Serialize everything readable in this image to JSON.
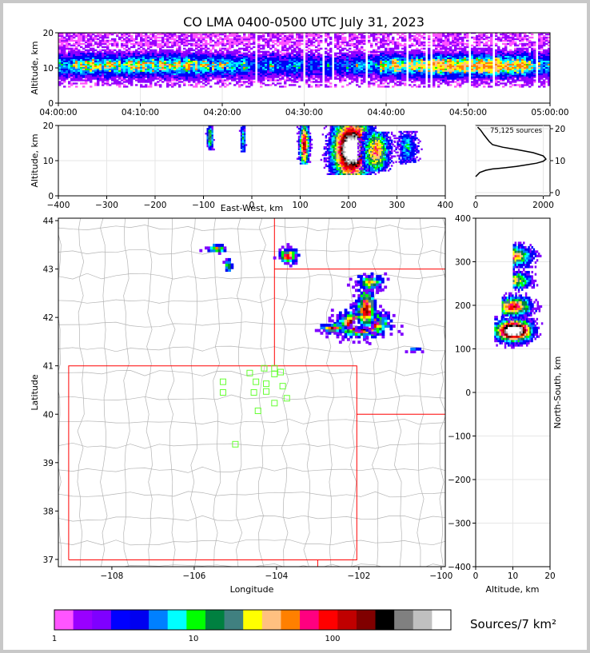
{
  "figure": {
    "title": "CO LMA 0400-0500 UTC July 31, 2023",
    "source_count_label": "75,125 sources",
    "colorbar_label": "Sources/7 km²",
    "colorbar_ticks": [
      "1",
      "10",
      "100"
    ],
    "colorbar_colors": [
      "#ff55ff",
      "#9900ff",
      "#7f00ff",
      "#0000ff",
      "#0000f0",
      "#0080ff",
      "#00ffff",
      "#00ff00",
      "#008040",
      "#408080",
      "#ffff00",
      "#ffc080",
      "#ff8000",
      "#ff0080",
      "#ff0000",
      "#c00000",
      "#800000",
      "#000000",
      "#808080",
      "#c0c0c0",
      "#ffffff"
    ]
  },
  "chart_data": [
    {
      "id": "time_height",
      "type": "heatmap",
      "xlabel": "",
      "ylabel": "Altitude, km",
      "xticks": [
        "04:00:00",
        "04:10:00",
        "04:20:00",
        "04:30:00",
        "04:40:00",
        "04:50:00",
        "05:00:00"
      ],
      "xlim": [
        "04:00:00",
        "05:00:00"
      ],
      "yticks": [
        "0",
        "10",
        "20"
      ],
      "ylim": [
        0,
        20
      ],
      "description_of_data": "source density vs time, altitude band ~5-20 km throughout hour"
    },
    {
      "id": "ew_height",
      "type": "heatmap",
      "xlabel": "East-West, km",
      "ylabel": "Altitude, km",
      "xticks": [
        "−400",
        "−300",
        "−200",
        "−100",
        "0",
        "100",
        "200",
        "300",
        "400"
      ],
      "xlim": [
        -400,
        400
      ],
      "yticks": [
        "0",
        "10",
        "20"
      ],
      "ylim": [
        0,
        20
      ]
    },
    {
      "id": "altitude_histogram",
      "type": "line",
      "xticks": [
        "0",
        "2000"
      ],
      "xlim": [
        0,
        2200
      ],
      "yticks": [
        "0",
        "10",
        "20"
      ],
      "ylim": [
        -1,
        21
      ],
      "x": [
        0,
        120,
        300,
        500,
        700,
        900,
        1200,
        1500,
        1800,
        2000,
        2080,
        2000,
        1700,
        1200,
        800,
        500,
        400,
        250,
        150,
        60
      ],
      "y": [
        5,
        6.3,
        7,
        7.4,
        7.6,
        7.8,
        8.2,
        8.7,
        9.2,
        9.8,
        10.5,
        11.5,
        12.5,
        13.5,
        14.2,
        15,
        16,
        18,
        19.5,
        20.5
      ]
    },
    {
      "id": "map",
      "type": "heatmap",
      "xlabel": "Longitude",
      "ylabel": "Latitude",
      "xticks": [
        "−108",
        "−106",
        "−104",
        "−102",
        "−100"
      ],
      "xlim": [
        -109.3,
        -99.9
      ],
      "yticks": [
        "37",
        "38",
        "39",
        "40",
        "41",
        "42",
        "43",
        "44"
      ],
      "ylim": [
        36.85,
        44.05
      ],
      "stations": [
        [
          -104.3,
          40.95
        ],
        [
          -104.05,
          40.95
        ],
        [
          -103.9,
          40.87
        ],
        [
          -104.65,
          40.85
        ],
        [
          -104.05,
          40.83
        ],
        [
          -105.3,
          40.67
        ],
        [
          -104.5,
          40.67
        ],
        [
          -104.25,
          40.63
        ],
        [
          -103.85,
          40.58
        ],
        [
          -104.25,
          40.47
        ],
        [
          -105.3,
          40.45
        ],
        [
          -104.55,
          40.45
        ],
        [
          -103.75,
          40.33
        ],
        [
          -104.05,
          40.23
        ],
        [
          -104.45,
          40.07
        ],
        [
          -105.0,
          39.38
        ]
      ]
    },
    {
      "id": "height_ns",
      "type": "heatmap",
      "xlabel": "Altitude, km",
      "ylabel": "North-South, km",
      "xticks": [
        "0",
        "10",
        "20"
      ],
      "xlim": [
        0,
        20
      ],
      "yticks": [
        "400",
        "300",
        "200",
        "100",
        "0",
        "−100",
        "−200",
        "−300",
        "−400"
      ],
      "ylim": [
        -400,
        400
      ]
    }
  ]
}
